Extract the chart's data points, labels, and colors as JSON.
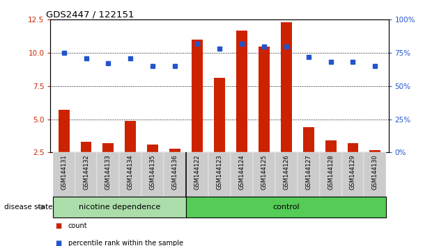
{
  "title": "GDS2447 / 122151",
  "samples": [
    "GSM144131",
    "GSM144132",
    "GSM144133",
    "GSM144134",
    "GSM144135",
    "GSM144136",
    "GSM144122",
    "GSM144123",
    "GSM144124",
    "GSM144125",
    "GSM144126",
    "GSM144127",
    "GSM144128",
    "GSM144129",
    "GSM144130"
  ],
  "bar_values": [
    5.7,
    3.3,
    3.2,
    4.9,
    3.1,
    2.8,
    11.0,
    8.1,
    11.7,
    10.5,
    12.3,
    4.4,
    3.4,
    3.2,
    2.7
  ],
  "dot_values": [
    75,
    71,
    67,
    71,
    65,
    65,
    82,
    78,
    82,
    80,
    80,
    72,
    68,
    68,
    65
  ],
  "nicotine_count": 6,
  "control_count": 9,
  "ylim_left": [
    2.5,
    12.5
  ],
  "ylim_right": [
    0,
    100
  ],
  "yticks_left": [
    2.5,
    5.0,
    7.5,
    10.0,
    12.5
  ],
  "yticks_right": [
    0,
    25,
    50,
    75,
    100
  ],
  "bar_color": "#cc2200",
  "dot_color": "#2255cc",
  "nicotine_bg": "#aaddaa",
  "control_bg": "#55cc55",
  "label_bg": "#cccccc",
  "group_label_nicotine": "nicotine dependence",
  "group_label_control": "control",
  "disease_state_label": "disease state",
  "legend_count": "count",
  "legend_percentile": "percentile rank within the sample",
  "bar_bottom": 2.5,
  "grid_dotted_at": [
    5.0,
    7.5,
    10.0
  ]
}
